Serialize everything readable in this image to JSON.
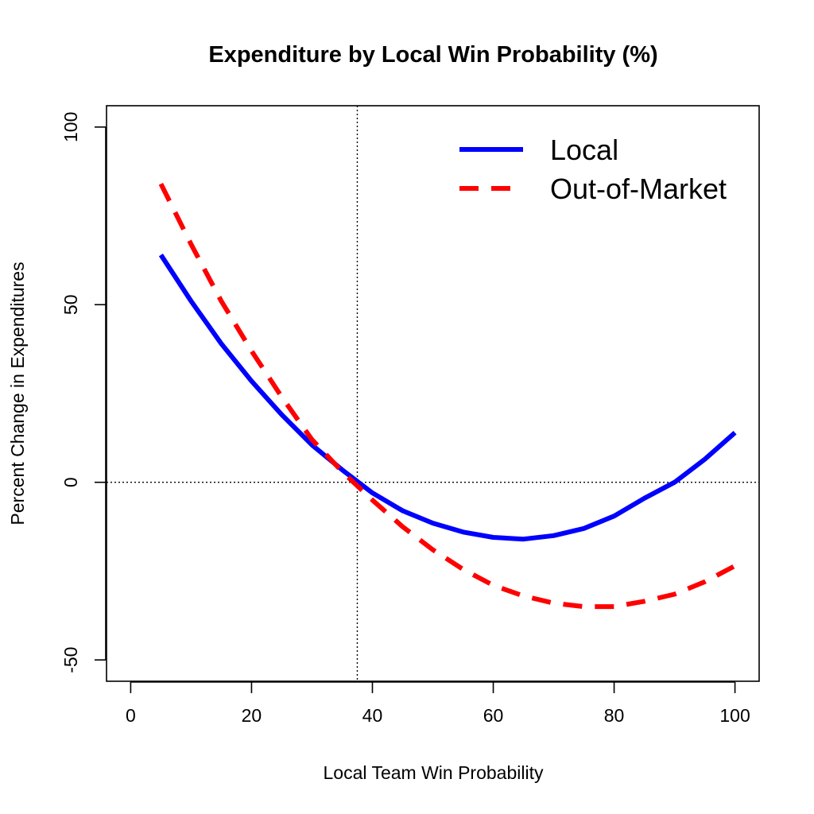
{
  "chart_data": {
    "type": "line",
    "title": "Expenditure by Local Win Probability (%)",
    "xlabel": "Local Team Win Probability",
    "ylabel": "Percent Change in Expenditures",
    "xlim": [
      -4,
      104
    ],
    "ylim": [
      -56,
      106
    ],
    "xticks": [
      0,
      20,
      40,
      60,
      80,
      100
    ],
    "yticks": [
      -50,
      0,
      50,
      100
    ],
    "xtick_labels": [
      "0",
      "20",
      "40",
      "60",
      "80",
      "100"
    ],
    "ytick_labels": [
      "-50",
      "0",
      "50",
      "100"
    ],
    "reference_lines": {
      "vertical_x": 37.5,
      "horizontal_y": 0,
      "style": "dotted"
    },
    "legend_position": "top-right",
    "series": [
      {
        "name": "Local",
        "color": "#0000ff",
        "dash": "solid",
        "x": [
          5,
          10,
          15,
          20,
          25,
          30,
          35,
          40,
          45,
          50,
          55,
          60,
          65,
          70,
          75,
          80,
          85,
          90,
          95,
          100
        ],
        "y": [
          64,
          51,
          39,
          28.5,
          19,
          10.5,
          3.5,
          -3,
          -8,
          -11.5,
          -14,
          -15.5,
          -16,
          -15,
          -13,
          -9.5,
          -4.5,
          0,
          6.5,
          14
        ]
      },
      {
        "name": "Out-of-Market",
        "color": "#ff0000",
        "dash": "dashed",
        "x": [
          5,
          10,
          15,
          20,
          25,
          30,
          35,
          40,
          45,
          50,
          55,
          60,
          65,
          70,
          75,
          80,
          85,
          90,
          95,
          100
        ],
        "y": [
          84,
          67,
          51,
          37,
          24,
          12,
          3,
          -5,
          -12.5,
          -19,
          -24.5,
          -29,
          -32,
          -34,
          -35,
          -35,
          -33.5,
          -31.5,
          -28,
          -23.5
        ]
      }
    ]
  }
}
